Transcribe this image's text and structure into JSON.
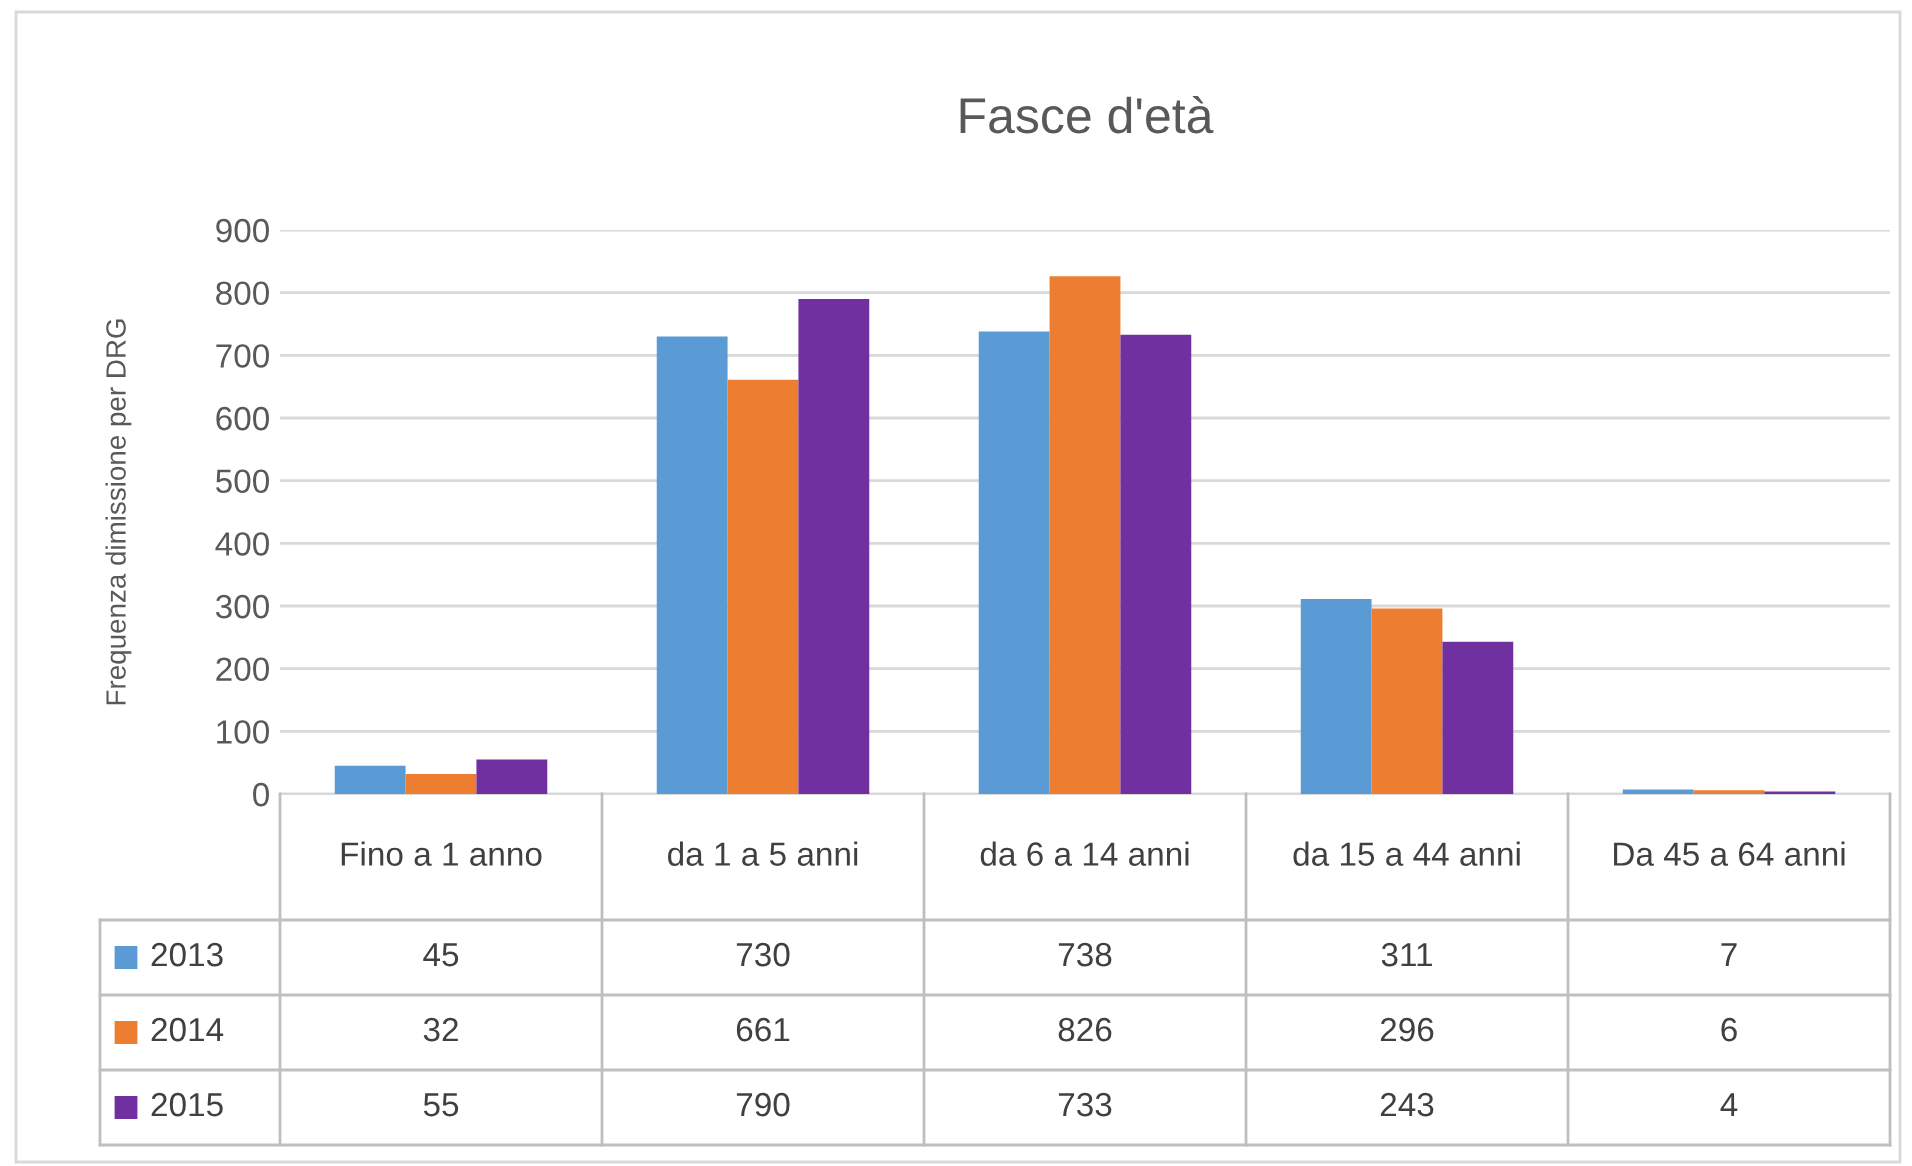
{
  "chart_data": {
    "type": "bar",
    "title": "Fasce d'età",
    "ylabel": "Frequenza dimissione per DRG",
    "categories": [
      "Fino a 1 anno",
      "da 1 a 5 anni",
      "da 6 a 14 anni",
      "da 15 a 44 anni",
      "Da 45 a 64 anni"
    ],
    "series": [
      {
        "name": "2013",
        "color": "#5b9bd5",
        "values": [
          45,
          730,
          738,
          311,
          7
        ]
      },
      {
        "name": "2014",
        "color": "#ed7d31",
        "values": [
          32,
          661,
          826,
          296,
          6
        ]
      },
      {
        "name": "2015",
        "color": "#7030a0",
        "values": [
          55,
          790,
          733,
          243,
          4
        ]
      }
    ],
    "ylim": [
      0,
      900
    ],
    "yticks": [
      0,
      100,
      200,
      300,
      400,
      500,
      600,
      700,
      800,
      900
    ],
    "grid": "y",
    "legend": "bottom",
    "data_labels": true
  }
}
